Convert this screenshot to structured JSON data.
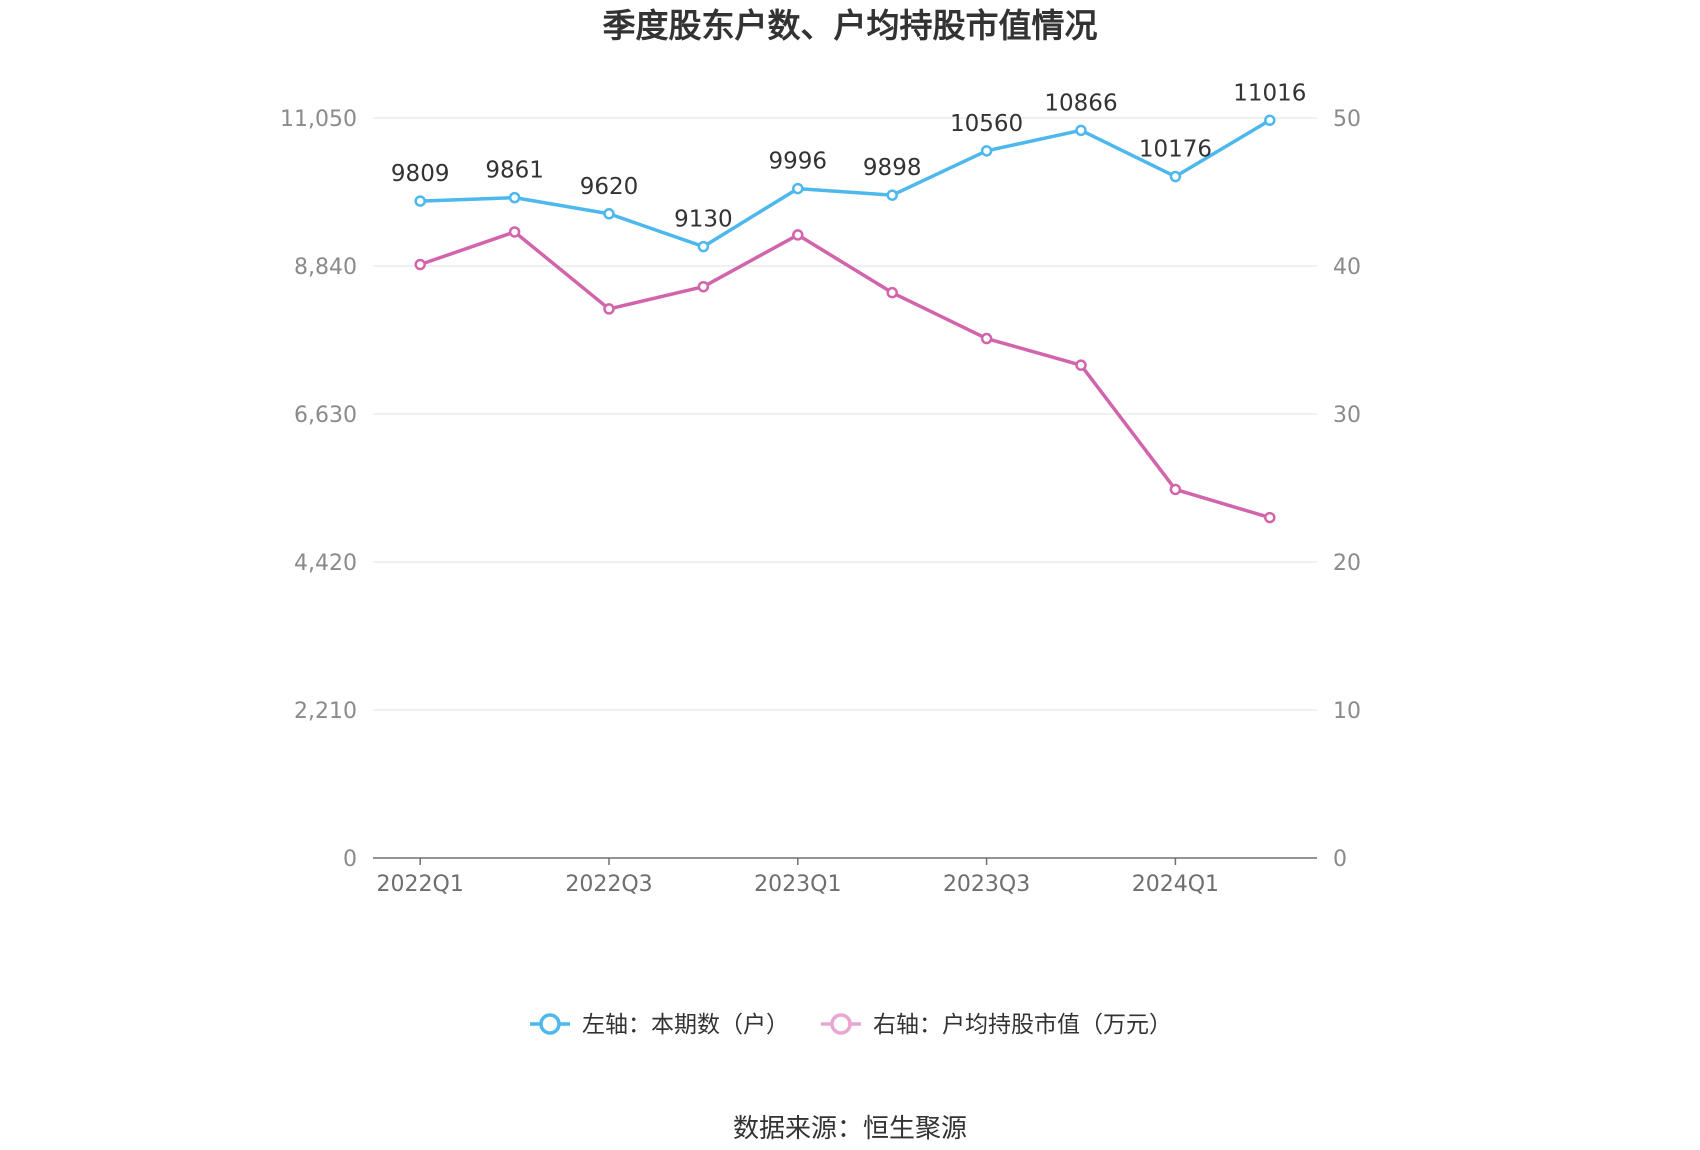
{
  "chart_data": {
    "type": "line",
    "title": "季度股东户数、户均持股市值情况",
    "categories": [
      "2022Q1",
      "2022Q2",
      "2022Q3",
      "2022Q4",
      "2023Q1",
      "2023Q2",
      "2023Q3",
      "2023Q4",
      "2024Q1",
      "2024Q2"
    ],
    "x_tick_labels": [
      "2022Q1",
      "2022Q3",
      "2023Q1",
      "2023Q3",
      "2024Q1"
    ],
    "y_left": {
      "ticks": [
        "0",
        "2,210",
        "4,420",
        "6,630",
        "8,840",
        "11,050"
      ],
      "lim": [
        0,
        11050
      ]
    },
    "y_right": {
      "ticks": [
        "0",
        "10",
        "20",
        "30",
        "40",
        "50"
      ],
      "lim": [
        0,
        50
      ]
    },
    "grid": true,
    "legend_position": "bottom",
    "series": [
      {
        "name": "左轴：本期数（户）",
        "axis": "left",
        "color": "#4db8ec",
        "values": [
          9809,
          9861,
          9620,
          9130,
          9996,
          9898,
          10560,
          10866,
          10176,
          11016
        ],
        "labels": [
          "9809",
          "9861",
          "9620",
          "9130",
          "9996",
          "9898",
          "10560",
          "10866",
          "10176",
          "11016"
        ]
      },
      {
        "name": "右轴：户均持股市值（万元）",
        "axis": "right",
        "color": "#d264ab",
        "values": [
          40.1,
          42.3,
          37.1,
          38.6,
          42.1,
          38.2,
          35.1,
          33.3,
          24.9,
          23.0
        ]
      }
    ]
  },
  "source": "数据来源：恒生聚源"
}
